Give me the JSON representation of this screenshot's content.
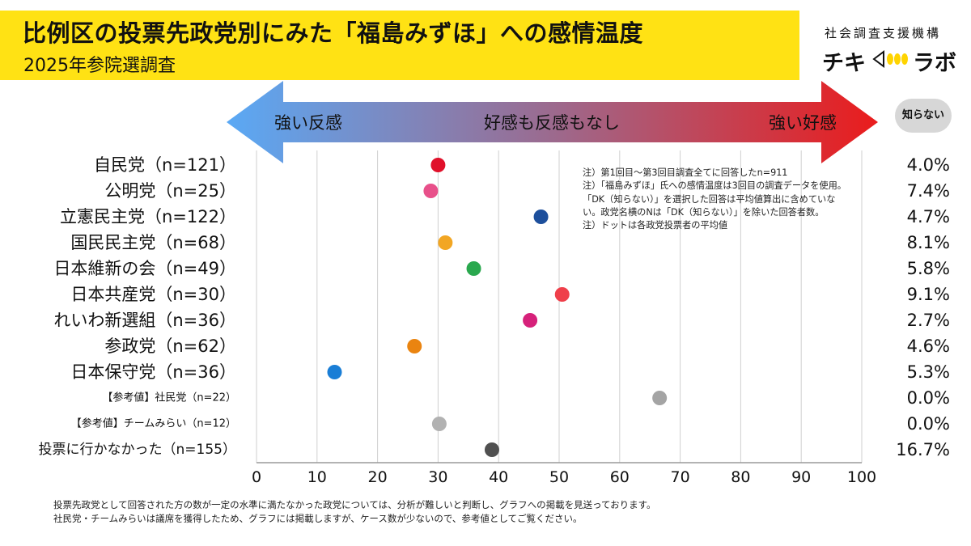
{
  "header": {
    "title": "比例区の投票先政党別にみた「福島みずほ」への感情温度",
    "subtitle": "2025年参院選調査",
    "org": "社会調査支援機構",
    "logo_left": "チキ",
    "logo_right": "ラボ"
  },
  "scale": {
    "left_label": "強い反感",
    "center_label": "好感も反感もなし",
    "right_label": "強い好感",
    "dk_label": "知らない"
  },
  "notes": [
    "注）第1回目〜第3回目調査全てに回答したn=911",
    "注）「福島みずほ」氏への感情温度は3回目の調査データを使用。",
    "「DK（知らない）」を選択した回答は平均値算出に含めていな",
    "い。政党名横のNは「DK（知らない）」を除いた回答者数。",
    "注）ドットは各政党投票者の平均値"
  ],
  "footer": [
    "投票先政党として回答された方の数が一定の水準に満たなかった政党については、分析が難しいと判断し、グラフへの掲載を見送っております。",
    "社民党・チームみらいは議席を獲得したため、グラフには掲載しますが、ケース数が少ないので、参考値としてご覧ください。"
  ],
  "colors": {
    "title_bg": "#ffe214",
    "arrow_left": "#5aa9f5",
    "arrow_right": "#ea1c1c"
  },
  "chart_data": {
    "type": "scatter",
    "xlim": [
      0,
      100
    ],
    "x_ticks": [
      "0",
      "10",
      "20",
      "30",
      "40",
      "50",
      "60",
      "70",
      "80",
      "90",
      "100"
    ],
    "categories": [
      {
        "label": "自民党（n=121）",
        "size": "large"
      },
      {
        "label": "公明党（n=25）",
        "size": "large"
      },
      {
        "label": "立憲民主党（n=122）",
        "size": "large"
      },
      {
        "label": "国民民主党（n=68）",
        "size": "large"
      },
      {
        "label": "日本維新の会（n=49）",
        "size": "large"
      },
      {
        "label": "日本共産党（n=30）",
        "size": "large"
      },
      {
        "label": "れいわ新選組（n=36）",
        "size": "large"
      },
      {
        "label": "参政党（n=62）",
        "size": "large"
      },
      {
        "label": "日本保守党（n=36）",
        "size": "large"
      },
      {
        "label": "【参考値】社民党（n=22）",
        "size": "small"
      },
      {
        "label": "【参考値】チームみらい（n=12）",
        "size": "small"
      },
      {
        "label": "投票に行かなかった（n=155）",
        "size": "medium"
      }
    ],
    "values": [
      30.0,
      28.8,
      47.0,
      31.2,
      35.9,
      50.5,
      45.2,
      26.1,
      12.9,
      66.6,
      30.2,
      38.9
    ],
    "dot_colors": [
      "#e0102a",
      "#e8508a",
      "#1d4f9c",
      "#f2a623",
      "#2aa84e",
      "#ef3f4a",
      "#d6217a",
      "#ea8410",
      "#1a7ed6",
      "#a4a4a4",
      "#b2b2b2",
      "#505050"
    ],
    "dk_percent": [
      "4.0%",
      "7.4%",
      "4.7%",
      "8.1%",
      "5.8%",
      "9.1%",
      "2.7%",
      "4.6%",
      "5.3%",
      "0.0%",
      "0.0%",
      "16.7%"
    ]
  }
}
